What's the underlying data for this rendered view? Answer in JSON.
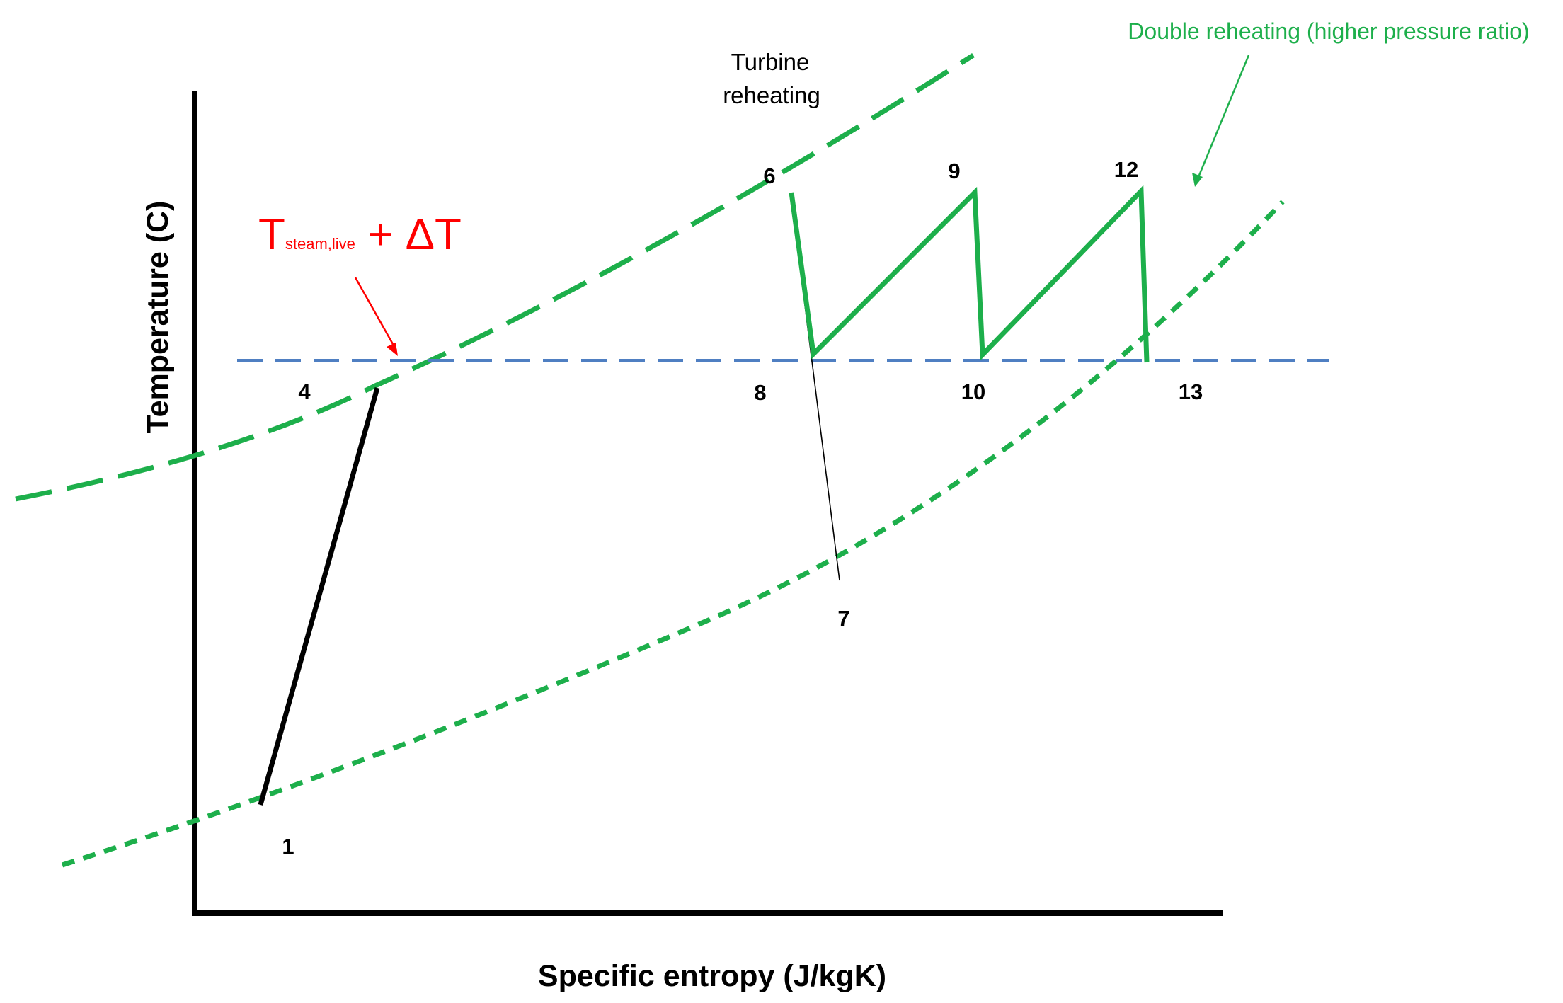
{
  "axes": {
    "x_label": "Specific entropy (J/kgK)",
    "y_label": "Temperature (C)"
  },
  "annotations": {
    "turbine_line1": "Turbine",
    "turbine_line2": "reheating",
    "double_reheating": "Double reheating (higher pressure ratio)",
    "tsteam_T": "T",
    "tsteam_sub": "steam,live",
    "tsteam_rest": " + ΔT"
  },
  "points": {
    "p1": "1",
    "p4": "4",
    "p6": "6",
    "p7": "7",
    "p8": "8",
    "p9": "9",
    "p10": "10",
    "p12": "12",
    "p13": "13"
  },
  "colors": {
    "axis": "#000000",
    "green": "#1daf4b",
    "blue_dashed": "#4f7fc2",
    "red": "#ff0000",
    "process_black": "#000000"
  }
}
